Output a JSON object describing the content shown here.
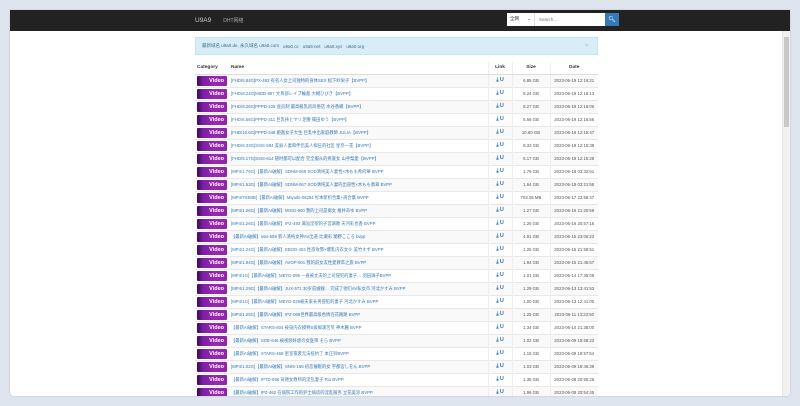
{
  "nav": {
    "brand": "U9A9",
    "link": "DHT网络",
    "search_scope": "全网",
    "search_placeholder": "Search..."
  },
  "alert": {
    "items": [
      "最新域名 u9a0.de, 永久域名 u9a0.com",
      "u9a0.cc",
      "u9a9.net",
      "u9a0.xyz",
      "u9a0.org"
    ]
  },
  "table": {
    "headers": [
      "Category",
      "Name",
      "Link",
      "Size",
      "Date"
    ],
    "badge": "Video",
    "rows": [
      {
        "name": "[FHD/6.84G]PX-493 有名人女上司独特的身体SEX 松下紗栄子【BVPP】",
        "size": "6.85 GB",
        "date": "2023-06-19 12:16:21"
      },
      {
        "name": "[FHD/8.24G]MIDD-887 文系部レイプ輪姦 大槻ひびき【BVPP】",
        "size": "8.24 GB",
        "date": "2023-06-19 12:16:13"
      },
      {
        "name": "[FHD/8.26G]PPPD-226 会员制 最高級乳房风俗店 水谷香織【BVPP】",
        "size": "8.27 GB",
        "date": "2023-06-19 12:16:06"
      },
      {
        "name": "[FHD/6.56G]PPPD-311 巨乳挟とヤリ足腰 篠田ゆう【BVPP】",
        "size": "6.56 GB",
        "date": "2023-06-19 12:15:56"
      },
      {
        "name": "[FHD/10.6G]PPPD-348 姫姦女子大生 巨乳中出家庭教師 JULIA【BVPP】",
        "size": "10.60 GB",
        "date": "2023-06-19 12:15:47"
      },
      {
        "name": "[FHD/8.33G]SSIS-584 美丽人妻和伴侣美人痴圧的社区 星奈一花【BVPP】",
        "size": "8.33 GB",
        "date": "2023-06-19 12:15:38"
      },
      {
        "name": "[FHD/5.17G]SSIS-614 随时都可以配合 完全服从的疼爱女 山手梨愛【BVPP】",
        "size": "5.17 GB",
        "date": "2023-06-19 12:15:28"
      },
      {
        "name": "[MP4/1.76G]【最新AI破解】SDNM-069 SOD清纯美人妻性×木もも希府華 BVPP",
        "size": "1.76 GB",
        "date": "2023-06-18 03:32:51"
      },
      {
        "name": "[MP4/1.63G]【最新AI破解】SDNM-067 SOD清纯美人妻的出道性×木もも翡翠 BVPP",
        "size": "1.64 GB",
        "date": "2023-06-18 03:21:58"
      },
      {
        "name": "[MP4/703MB]【最新AI破解】Miyaihi-06294 杉本新织合集+再合集 BVPP",
        "size": "703.05 MB",
        "date": "2023-06-17 23:58:47"
      },
      {
        "name": "[MP4/1.26G]【最新AI破解】MIGD-800 我的上司是痴女 推井あゆ BVPP",
        "size": "1.27 GB",
        "date": "2023-06-16 21:20:59"
      },
      {
        "name": "[MP4/1.26G]【最新AI破解】IPZ-493 满溢淫欲的子宫调教 天河彩也香 BVPP",
        "size": "1.26 GB",
        "date": "2023-06-16 20:57:16"
      },
      {
        "name": "【最新AI破解】ssis-658 新人清纯女神AV出道·比濑彩 蘭野こころ bvpp",
        "size": "4.91 GB",
        "date": "2023-06-15 23:06:23"
      },
      {
        "name": "[MP4/1.24G]【最新AI破解】EBOD-404 性欲攻勢×爆乳内衣女仆 美竹すず BVPP",
        "size": "1.25 GB",
        "date": "2023-06-15 21:58:51"
      },
      {
        "name": "[MP4/1.94G]【最新AI破解】AVOP-001 我的前女友性愛教卒之旅 BVPP",
        "size": "1.94 GB",
        "date": "2023-06-15 21:45:57"
      },
      {
        "name": "[MP4/1G]【最新AI破解】MEYD-095 一直被丈夫的上司侵犯的妻子… 羽田璃子BVPP",
        "size": "1.01 GB",
        "date": "2023-06-14 17:35:09"
      },
      {
        "name": "[MP4/1.29G]【最新AI破解】JUX-571 30岁前嫂嫂… 完成了他们AV私女市 河北かすみ BVPP",
        "size": "1.29 GB",
        "date": "2023-06-13 13:41:53"
      },
      {
        "name": "[MP4/1G]【最新AI破解】MEYD-029被夫家长男侵犯的妻子 河北かすみ BVPP",
        "size": "1.00 GB",
        "date": "2023-06-13 12:41:00"
      },
      {
        "name": "[MP4/1.25G]【最新AI破解】IPZ-069世界最高级色情百花路路 BVPP",
        "size": "1.25 GB",
        "date": "2023-06-11 13:23:50"
      },
      {
        "name": "【最新AI破解】STARS-804 被染内衣模特S级痴漢苦笑 神木麗 BVPP",
        "size": "1.34 GB",
        "date": "2023-06-10 21:38:00"
      },
      {
        "name": "【最新AI破解】SOE-646 被视频奸虐の女医师 そら BVPP",
        "size": "1.02 GB",
        "date": "2023-06-09 19:58:23"
      },
      {
        "name": "【最新AI破解】STARS-468 密室夜袭无法抵抗了 本庄铃BVPP",
        "size": "1.15 GB",
        "date": "2023-06-09 19:57:54"
      },
      {
        "name": "[MP4/1.02G]【最新AI破解】SNIS-166 初恋催眠的女 宇都宮しをん BVPP",
        "size": "1.03 GB",
        "date": "2023-06-09 19:46:39"
      },
      {
        "name": "【最新AI破解】IPTD-996 背德女教师的淫乱妻子 Rio BVPP",
        "size": "1.38 GB",
        "date": "2023-06-08 20:55:26"
      },
      {
        "name": "【最新AI破解】IPZ-462 在病院工作的护士病房的淫乱服务 立花美涼 BVPP",
        "size": "1.96 GB",
        "date": "2023-06-08 20:54:45"
      }
    ]
  },
  "icons": {
    "download": "download-icon",
    "magnet": "magnet-icon",
    "search": "search-icon"
  },
  "colors": {
    "navbar": "#222222",
    "accent": "#337ab7",
    "badge": "#9c27b0",
    "alert": "#d9edf7"
  }
}
